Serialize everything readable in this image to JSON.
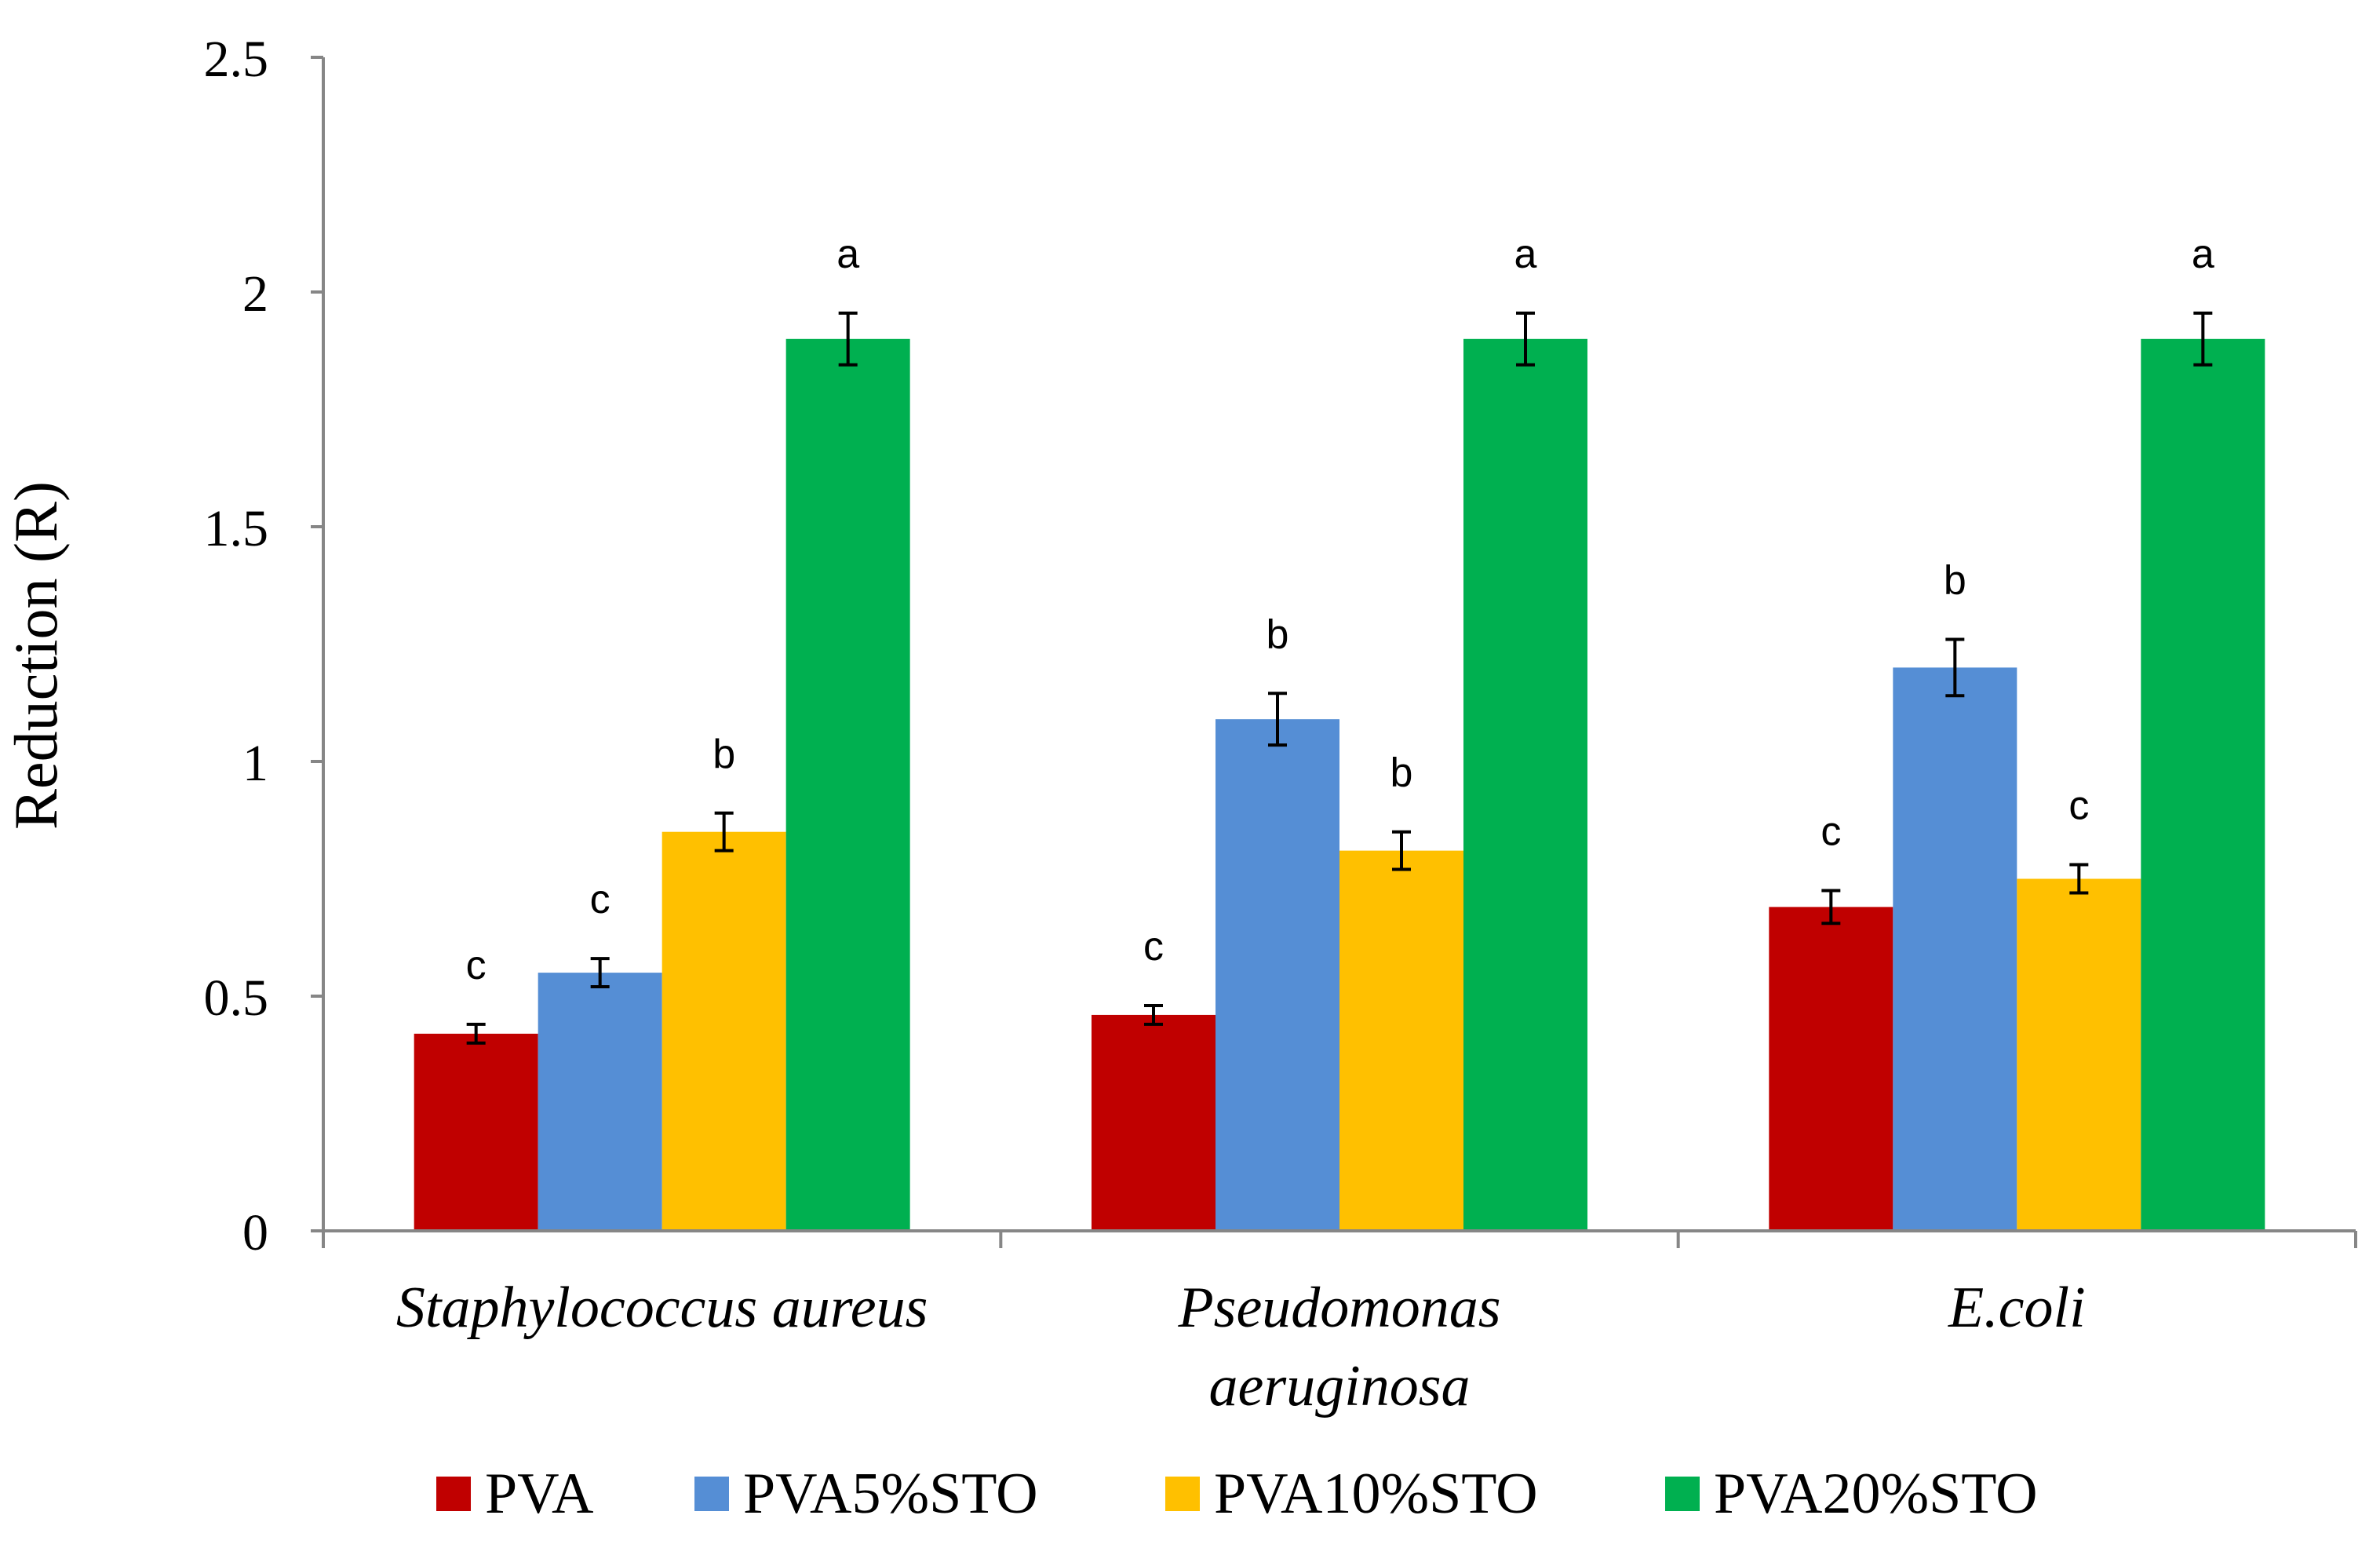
{
  "chart_data": {
    "type": "bar",
    "title": "",
    "xlabel": "",
    "ylabel": "Reduction (R)",
    "ylim": [
      0,
      2.5
    ],
    "yticks": [
      "0",
      "0.5",
      "1",
      "1.5",
      "2",
      "2.5"
    ],
    "categories": [
      [
        "Staphylococcus aureus"
      ],
      [
        "Pseudomonas",
        "aeruginosa"
      ],
      [
        "E.coli"
      ]
    ],
    "series": [
      {
        "name": "PVA",
        "color": "#c00000",
        "values": [
          0.42,
          0.46,
          0.69
        ],
        "errors": [
          0.02,
          0.02,
          0.035
        ],
        "letters": [
          "c",
          "c",
          "c"
        ]
      },
      {
        "name": "PVA5%STO",
        "color": "#558ed5",
        "values": [
          0.55,
          1.09,
          1.2
        ],
        "errors": [
          0.03,
          0.055,
          0.06
        ],
        "letters": [
          "c",
          "b",
          "b"
        ]
      },
      {
        "name": "PVA10%STO",
        "color": "#ffc000",
        "values": [
          0.85,
          0.81,
          0.75
        ],
        "errors": [
          0.04,
          0.04,
          0.03
        ],
        "letters": [
          "b",
          "b",
          "c"
        ]
      },
      {
        "name": "PVA20%STO",
        "color": "#00b050",
        "values": [
          1.9,
          1.9,
          1.9
        ],
        "errors": [
          0.055,
          0.055,
          0.055
        ],
        "letters": [
          "a",
          "a",
          "a"
        ]
      }
    ],
    "legend_position": "bottom",
    "grid": false
  }
}
